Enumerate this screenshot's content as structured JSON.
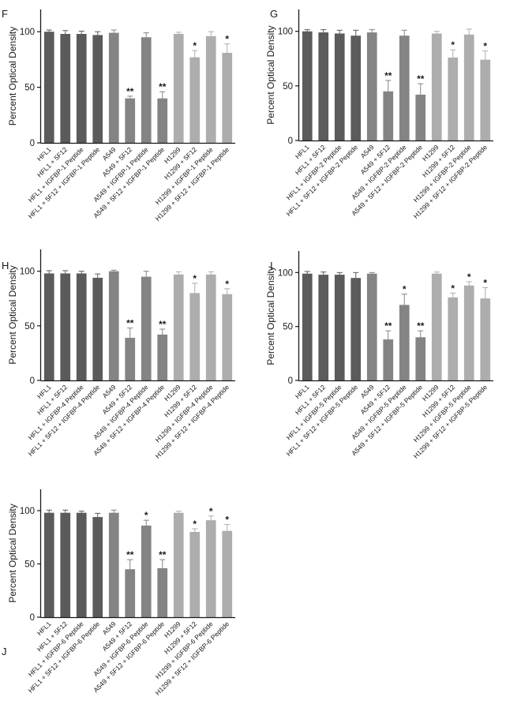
{
  "colors": {
    "dark": "#5b5b5b",
    "mid": "#848484",
    "light": "#adadad",
    "axis": "#1a1a1a"
  },
  "chart_data": [
    {
      "panel": "F",
      "type": "bar",
      "ylabel": "Percent Optical Density",
      "ylim": [
        0,
        120
      ],
      "yticks": [
        0,
        50,
        100
      ],
      "categories": [
        "HFL1",
        "HFL1 + 5F12",
        "HFL1 + IGFBP-1 Peptide",
        "HFL1 + 5F12 + IGFBP-1 Peptide",
        "A549",
        "A549 + 5F12",
        "A549 + IGFBP-1 Peptide",
        "A549 + 5F12 + IGFBP-1 Peptide",
        "H1299",
        "H1299 + 5F12",
        "H1299 + IGFBP-1 Peptide",
        "H1299 + 5F12 + IGFBP-1 Peptide"
      ],
      "values": [
        100,
        98,
        98,
        97,
        99,
        40,
        95,
        40,
        98,
        77,
        96,
        81
      ],
      "errors": [
        1.5,
        3,
        2.5,
        3,
        2.5,
        2,
        4,
        6,
        1.5,
        6,
        4,
        8
      ],
      "shades": [
        "dark",
        "dark",
        "dark",
        "dark",
        "mid",
        "mid",
        "mid",
        "mid",
        "light",
        "light",
        "light",
        "light"
      ],
      "annotations": [
        "",
        "",
        "",
        "",
        "",
        "**",
        "",
        "**",
        "",
        "*",
        "",
        "*"
      ]
    },
    {
      "panel": "G",
      "type": "bar",
      "ylabel": "Percent Optical Density",
      "ylim": [
        0,
        120
      ],
      "yticks": [
        0,
        50,
        100
      ],
      "categories": [
        "HFL1",
        "HFL1 + 5F12",
        "HFL1 + IGFBP-2 Peptide",
        "HFL1 + 5F12 + IGFBP-2 Peptide",
        "A549",
        "A549 + 5F12",
        "A549 + IGFBP-2 Peptide",
        "A549 + 5F12 + IGFBP-2 Peptide",
        "H1299",
        "H1299 + 5F12",
        "H1299 + IGFBP-2 Peptide",
        "H1299 + 5F12 + IGFBP-2 Peptide"
      ],
      "values": [
        100,
        99,
        98,
        96,
        99,
        45,
        96,
        42,
        98,
        76,
        97,
        74
      ],
      "errors": [
        1.5,
        2.5,
        3,
        5,
        2.5,
        10,
        5,
        10,
        2,
        7,
        5,
        8
      ],
      "shades": [
        "dark",
        "dark",
        "dark",
        "dark",
        "mid",
        "mid",
        "mid",
        "mid",
        "light",
        "light",
        "light",
        "light"
      ],
      "annotations": [
        "",
        "",
        "",
        "",
        "",
        "**",
        "",
        "**",
        "",
        "*",
        "",
        "*"
      ]
    },
    {
      "panel": "H",
      "type": "bar",
      "ylabel": "Percent Optical Density",
      "ylim": [
        0,
        120
      ],
      "yticks": [
        0,
        50,
        100
      ],
      "categories": [
        "HFL1",
        "HFL1 + 5F12",
        "HFL1 + IGFBP-4 Peptide",
        "HFL1 + 5F12 + IGFBP-4 Peptide",
        "A549",
        "A549 + 5F12",
        "A549 + IGFBP-4 Peptide",
        "A549 + 5F12 + IGFBP-4 Peptide",
        "H1299",
        "H1299 + 5F12",
        "H1299 + IGFBP-4 Peptide",
        "H1299 + 5F12 + IGFBP-4 Peptide"
      ],
      "values": [
        98,
        98,
        98,
        94,
        100,
        39,
        95,
        42,
        97,
        80,
        97,
        79
      ],
      "errors": [
        2.5,
        2.5,
        2,
        3.5,
        1,
        9,
        5,
        5,
        2.5,
        9,
        2.5,
        5
      ],
      "shades": [
        "dark",
        "dark",
        "dark",
        "dark",
        "mid",
        "mid",
        "mid",
        "mid",
        "light",
        "light",
        "light",
        "light"
      ],
      "annotations": [
        "",
        "",
        "",
        "",
        "",
        "**",
        "",
        "**",
        "",
        "*",
        "",
        "*"
      ]
    },
    {
      "panel": "I",
      "type": "bar",
      "ylabel": "Percent Optical Density",
      "ylim": [
        0,
        120
      ],
      "yticks": [
        0,
        50,
        100
      ],
      "categories": [
        "HFL1",
        "HFL1 + 5F12",
        "HFL1 + IGFBP-5 Peptide",
        "HFL1 + 5F12 + IGFBP-5 Peptide",
        "A549",
        "A549 + 5F12",
        "A549 + IGFBP-5 Peptide",
        "A549 + 5F12 + IGFBP-5 Peptide",
        "H1299",
        "H1299 + 5F12",
        "H1299 + IGFBP-5 Peptide",
        "H1299 + 5F12 + IGFBP-5 Peptide"
      ],
      "values": [
        99,
        98,
        98,
        95,
        99,
        38,
        70,
        40,
        99,
        77,
        88,
        76
      ],
      "errors": [
        2,
        2.5,
        2,
        5,
        1,
        8,
        10,
        6,
        1.5,
        4,
        3.5,
        10
      ],
      "shades": [
        "dark",
        "dark",
        "dark",
        "dark",
        "mid",
        "mid",
        "mid",
        "mid",
        "light",
        "light",
        "light",
        "light"
      ],
      "annotations": [
        "",
        "",
        "",
        "",
        "",
        "**",
        "*",
        "**",
        "",
        "*",
        "*",
        "*"
      ]
    },
    {
      "panel": "J",
      "type": "bar",
      "ylabel": "Percent Optical Density",
      "ylim": [
        0,
        120
      ],
      "yticks": [
        0,
        50,
        100
      ],
      "categories": [
        "HFL1",
        "HFL1 + 5F12",
        "HFL1 + IGFBP-6 Peptide",
        "HFL1 + 5F12 + IGFBP-6 Peptide",
        "A549",
        "A549 + 5F12",
        "A549 + IGFBP-6 Peptide",
        "A549 + 5F12 + IGFBP-6 Peptide",
        "H1299",
        "H1299 + 5F12",
        "H1299 + IGFBP-6 Peptide",
        "H1299 + 5F12 + IGFBP-6 Peptide"
      ],
      "values": [
        98,
        98,
        98,
        94,
        98,
        45,
        86,
        46,
        98,
        80,
        91,
        81
      ],
      "errors": [
        2.5,
        2.5,
        1.5,
        3.5,
        2.5,
        9,
        5,
        8,
        1.5,
        3,
        4,
        6
      ],
      "shades": [
        "dark",
        "dark",
        "dark",
        "dark",
        "mid",
        "mid",
        "mid",
        "mid",
        "light",
        "light",
        "light",
        "light"
      ],
      "annotations": [
        "",
        "",
        "",
        "",
        "",
        "**",
        "*",
        "**",
        "",
        "*",
        "*",
        "*"
      ]
    }
  ]
}
